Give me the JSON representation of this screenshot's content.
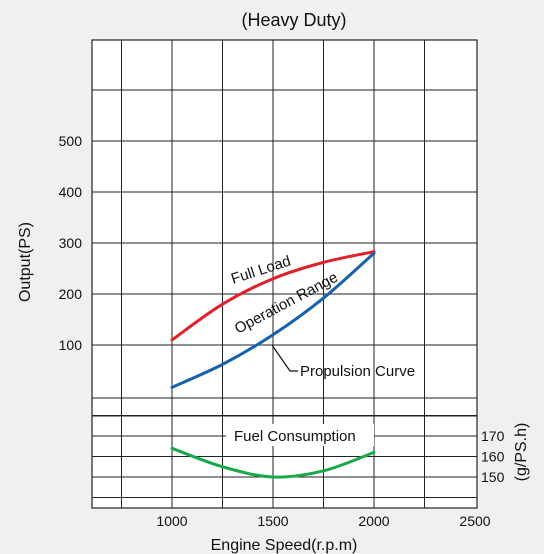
{
  "chart_data": {
    "type": "line",
    "title": "(Heavy Duty)",
    "xlabel": "Engine Speed(r.p.m)",
    "ylabel": "Output(PS)",
    "y2label": "(g/PS.h)",
    "xlim": [
      500,
      2500
    ],
    "ylim": [
      0,
      600
    ],
    "y2lim": [
      130,
      190
    ],
    "x_ticks": [
      "1000",
      "1500",
      "2000",
      "2500"
    ],
    "y_ticks": [
      "100",
      "200",
      "300",
      "400",
      "500"
    ],
    "y2_ticks": [
      "150",
      "160",
      "170"
    ],
    "grid": true,
    "series": [
      {
        "name": "Full Load",
        "color": "#e0202a",
        "x": [
          1000,
          1250,
          1500,
          1750,
          2000
        ],
        "y": [
          110,
          180,
          230,
          262,
          283
        ]
      },
      {
        "name": "Propulsion Curve",
        "color": "#1660b0",
        "x": [
          1000,
          1250,
          1500,
          1750,
          2000
        ],
        "y": [
          17,
          62,
          120,
          192,
          280
        ]
      },
      {
        "name": "Fuel Consumption",
        "color": "#1aa84a",
        "axis": "right",
        "x": [
          1000,
          1250,
          1500,
          1750,
          2000
        ],
        "y": [
          164,
          155,
          150,
          153,
          162
        ]
      }
    ],
    "annotations": [
      {
        "text": "Operation Range"
      }
    ]
  }
}
